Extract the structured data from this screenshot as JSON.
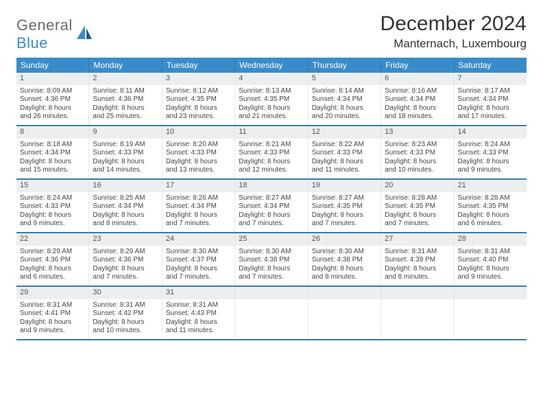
{
  "logo": {
    "text1": "General",
    "text2": "Blue"
  },
  "title": "December 2024",
  "location": "Manternach, Luxembourg",
  "colors": {
    "header_bg": "#3a8cc9",
    "header_text": "#ffffff",
    "daynum_bg": "#eceeef",
    "border": "#3a7aa8",
    "logo_gray": "#6b6b6b",
    "logo_blue": "#3a8cc9"
  },
  "weekdays": [
    "Sunday",
    "Monday",
    "Tuesday",
    "Wednesday",
    "Thursday",
    "Friday",
    "Saturday"
  ],
  "weeks": [
    [
      {
        "n": "1",
        "sr": "Sunrise: 8:09 AM",
        "ss": "Sunset: 4:36 PM",
        "d1": "Daylight: 8 hours",
        "d2": "and 26 minutes."
      },
      {
        "n": "2",
        "sr": "Sunrise: 8:11 AM",
        "ss": "Sunset: 4:36 PM",
        "d1": "Daylight: 8 hours",
        "d2": "and 25 minutes."
      },
      {
        "n": "3",
        "sr": "Sunrise: 8:12 AM",
        "ss": "Sunset: 4:35 PM",
        "d1": "Daylight: 8 hours",
        "d2": "and 23 minutes."
      },
      {
        "n": "4",
        "sr": "Sunrise: 8:13 AM",
        "ss": "Sunset: 4:35 PM",
        "d1": "Daylight: 8 hours",
        "d2": "and 21 minutes."
      },
      {
        "n": "5",
        "sr": "Sunrise: 8:14 AM",
        "ss": "Sunset: 4:34 PM",
        "d1": "Daylight: 8 hours",
        "d2": "and 20 minutes."
      },
      {
        "n": "6",
        "sr": "Sunrise: 8:16 AM",
        "ss": "Sunset: 4:34 PM",
        "d1": "Daylight: 8 hours",
        "d2": "and 18 minutes."
      },
      {
        "n": "7",
        "sr": "Sunrise: 8:17 AM",
        "ss": "Sunset: 4:34 PM",
        "d1": "Daylight: 8 hours",
        "d2": "and 17 minutes."
      }
    ],
    [
      {
        "n": "8",
        "sr": "Sunrise: 8:18 AM",
        "ss": "Sunset: 4:34 PM",
        "d1": "Daylight: 8 hours",
        "d2": "and 15 minutes."
      },
      {
        "n": "9",
        "sr": "Sunrise: 8:19 AM",
        "ss": "Sunset: 4:33 PM",
        "d1": "Daylight: 8 hours",
        "d2": "and 14 minutes."
      },
      {
        "n": "10",
        "sr": "Sunrise: 8:20 AM",
        "ss": "Sunset: 4:33 PM",
        "d1": "Daylight: 8 hours",
        "d2": "and 13 minutes."
      },
      {
        "n": "11",
        "sr": "Sunrise: 8:21 AM",
        "ss": "Sunset: 4:33 PM",
        "d1": "Daylight: 8 hours",
        "d2": "and 12 minutes."
      },
      {
        "n": "12",
        "sr": "Sunrise: 8:22 AM",
        "ss": "Sunset: 4:33 PM",
        "d1": "Daylight: 8 hours",
        "d2": "and 11 minutes."
      },
      {
        "n": "13",
        "sr": "Sunrise: 8:23 AM",
        "ss": "Sunset: 4:33 PM",
        "d1": "Daylight: 8 hours",
        "d2": "and 10 minutes."
      },
      {
        "n": "14",
        "sr": "Sunrise: 8:24 AM",
        "ss": "Sunset: 4:33 PM",
        "d1": "Daylight: 8 hours",
        "d2": "and 9 minutes."
      }
    ],
    [
      {
        "n": "15",
        "sr": "Sunrise: 8:24 AM",
        "ss": "Sunset: 4:33 PM",
        "d1": "Daylight: 8 hours",
        "d2": "and 9 minutes."
      },
      {
        "n": "16",
        "sr": "Sunrise: 8:25 AM",
        "ss": "Sunset: 4:34 PM",
        "d1": "Daylight: 8 hours",
        "d2": "and 8 minutes."
      },
      {
        "n": "17",
        "sr": "Sunrise: 8:26 AM",
        "ss": "Sunset: 4:34 PM",
        "d1": "Daylight: 8 hours",
        "d2": "and 7 minutes."
      },
      {
        "n": "18",
        "sr": "Sunrise: 8:27 AM",
        "ss": "Sunset: 4:34 PM",
        "d1": "Daylight: 8 hours",
        "d2": "and 7 minutes."
      },
      {
        "n": "19",
        "sr": "Sunrise: 8:27 AM",
        "ss": "Sunset: 4:35 PM",
        "d1": "Daylight: 8 hours",
        "d2": "and 7 minutes."
      },
      {
        "n": "20",
        "sr": "Sunrise: 8:28 AM",
        "ss": "Sunset: 4:35 PM",
        "d1": "Daylight: 8 hours",
        "d2": "and 7 minutes."
      },
      {
        "n": "21",
        "sr": "Sunrise: 8:28 AM",
        "ss": "Sunset: 4:35 PM",
        "d1": "Daylight: 8 hours",
        "d2": "and 6 minutes."
      }
    ],
    [
      {
        "n": "22",
        "sr": "Sunrise: 8:29 AM",
        "ss": "Sunset: 4:36 PM",
        "d1": "Daylight: 8 hours",
        "d2": "and 6 minutes."
      },
      {
        "n": "23",
        "sr": "Sunrise: 8:29 AM",
        "ss": "Sunset: 4:36 PM",
        "d1": "Daylight: 8 hours",
        "d2": "and 7 minutes."
      },
      {
        "n": "24",
        "sr": "Sunrise: 8:30 AM",
        "ss": "Sunset: 4:37 PM",
        "d1": "Daylight: 8 hours",
        "d2": "and 7 minutes."
      },
      {
        "n": "25",
        "sr": "Sunrise: 8:30 AM",
        "ss": "Sunset: 4:38 PM",
        "d1": "Daylight: 8 hours",
        "d2": "and 7 minutes."
      },
      {
        "n": "26",
        "sr": "Sunrise: 8:30 AM",
        "ss": "Sunset: 4:38 PM",
        "d1": "Daylight: 8 hours",
        "d2": "and 8 minutes."
      },
      {
        "n": "27",
        "sr": "Sunrise: 8:31 AM",
        "ss": "Sunset: 4:39 PM",
        "d1": "Daylight: 8 hours",
        "d2": "and 8 minutes."
      },
      {
        "n": "28",
        "sr": "Sunrise: 8:31 AM",
        "ss": "Sunset: 4:40 PM",
        "d1": "Daylight: 8 hours",
        "d2": "and 9 minutes."
      }
    ],
    [
      {
        "n": "29",
        "sr": "Sunrise: 8:31 AM",
        "ss": "Sunset: 4:41 PM",
        "d1": "Daylight: 8 hours",
        "d2": "and 9 minutes."
      },
      {
        "n": "30",
        "sr": "Sunrise: 8:31 AM",
        "ss": "Sunset: 4:42 PM",
        "d1": "Daylight: 8 hours",
        "d2": "and 10 minutes."
      },
      {
        "n": "31",
        "sr": "Sunrise: 8:31 AM",
        "ss": "Sunset: 4:43 PM",
        "d1": "Daylight: 8 hours",
        "d2": "and 11 minutes."
      },
      {
        "empty": true
      },
      {
        "empty": true
      },
      {
        "empty": true
      },
      {
        "empty": true
      }
    ]
  ]
}
